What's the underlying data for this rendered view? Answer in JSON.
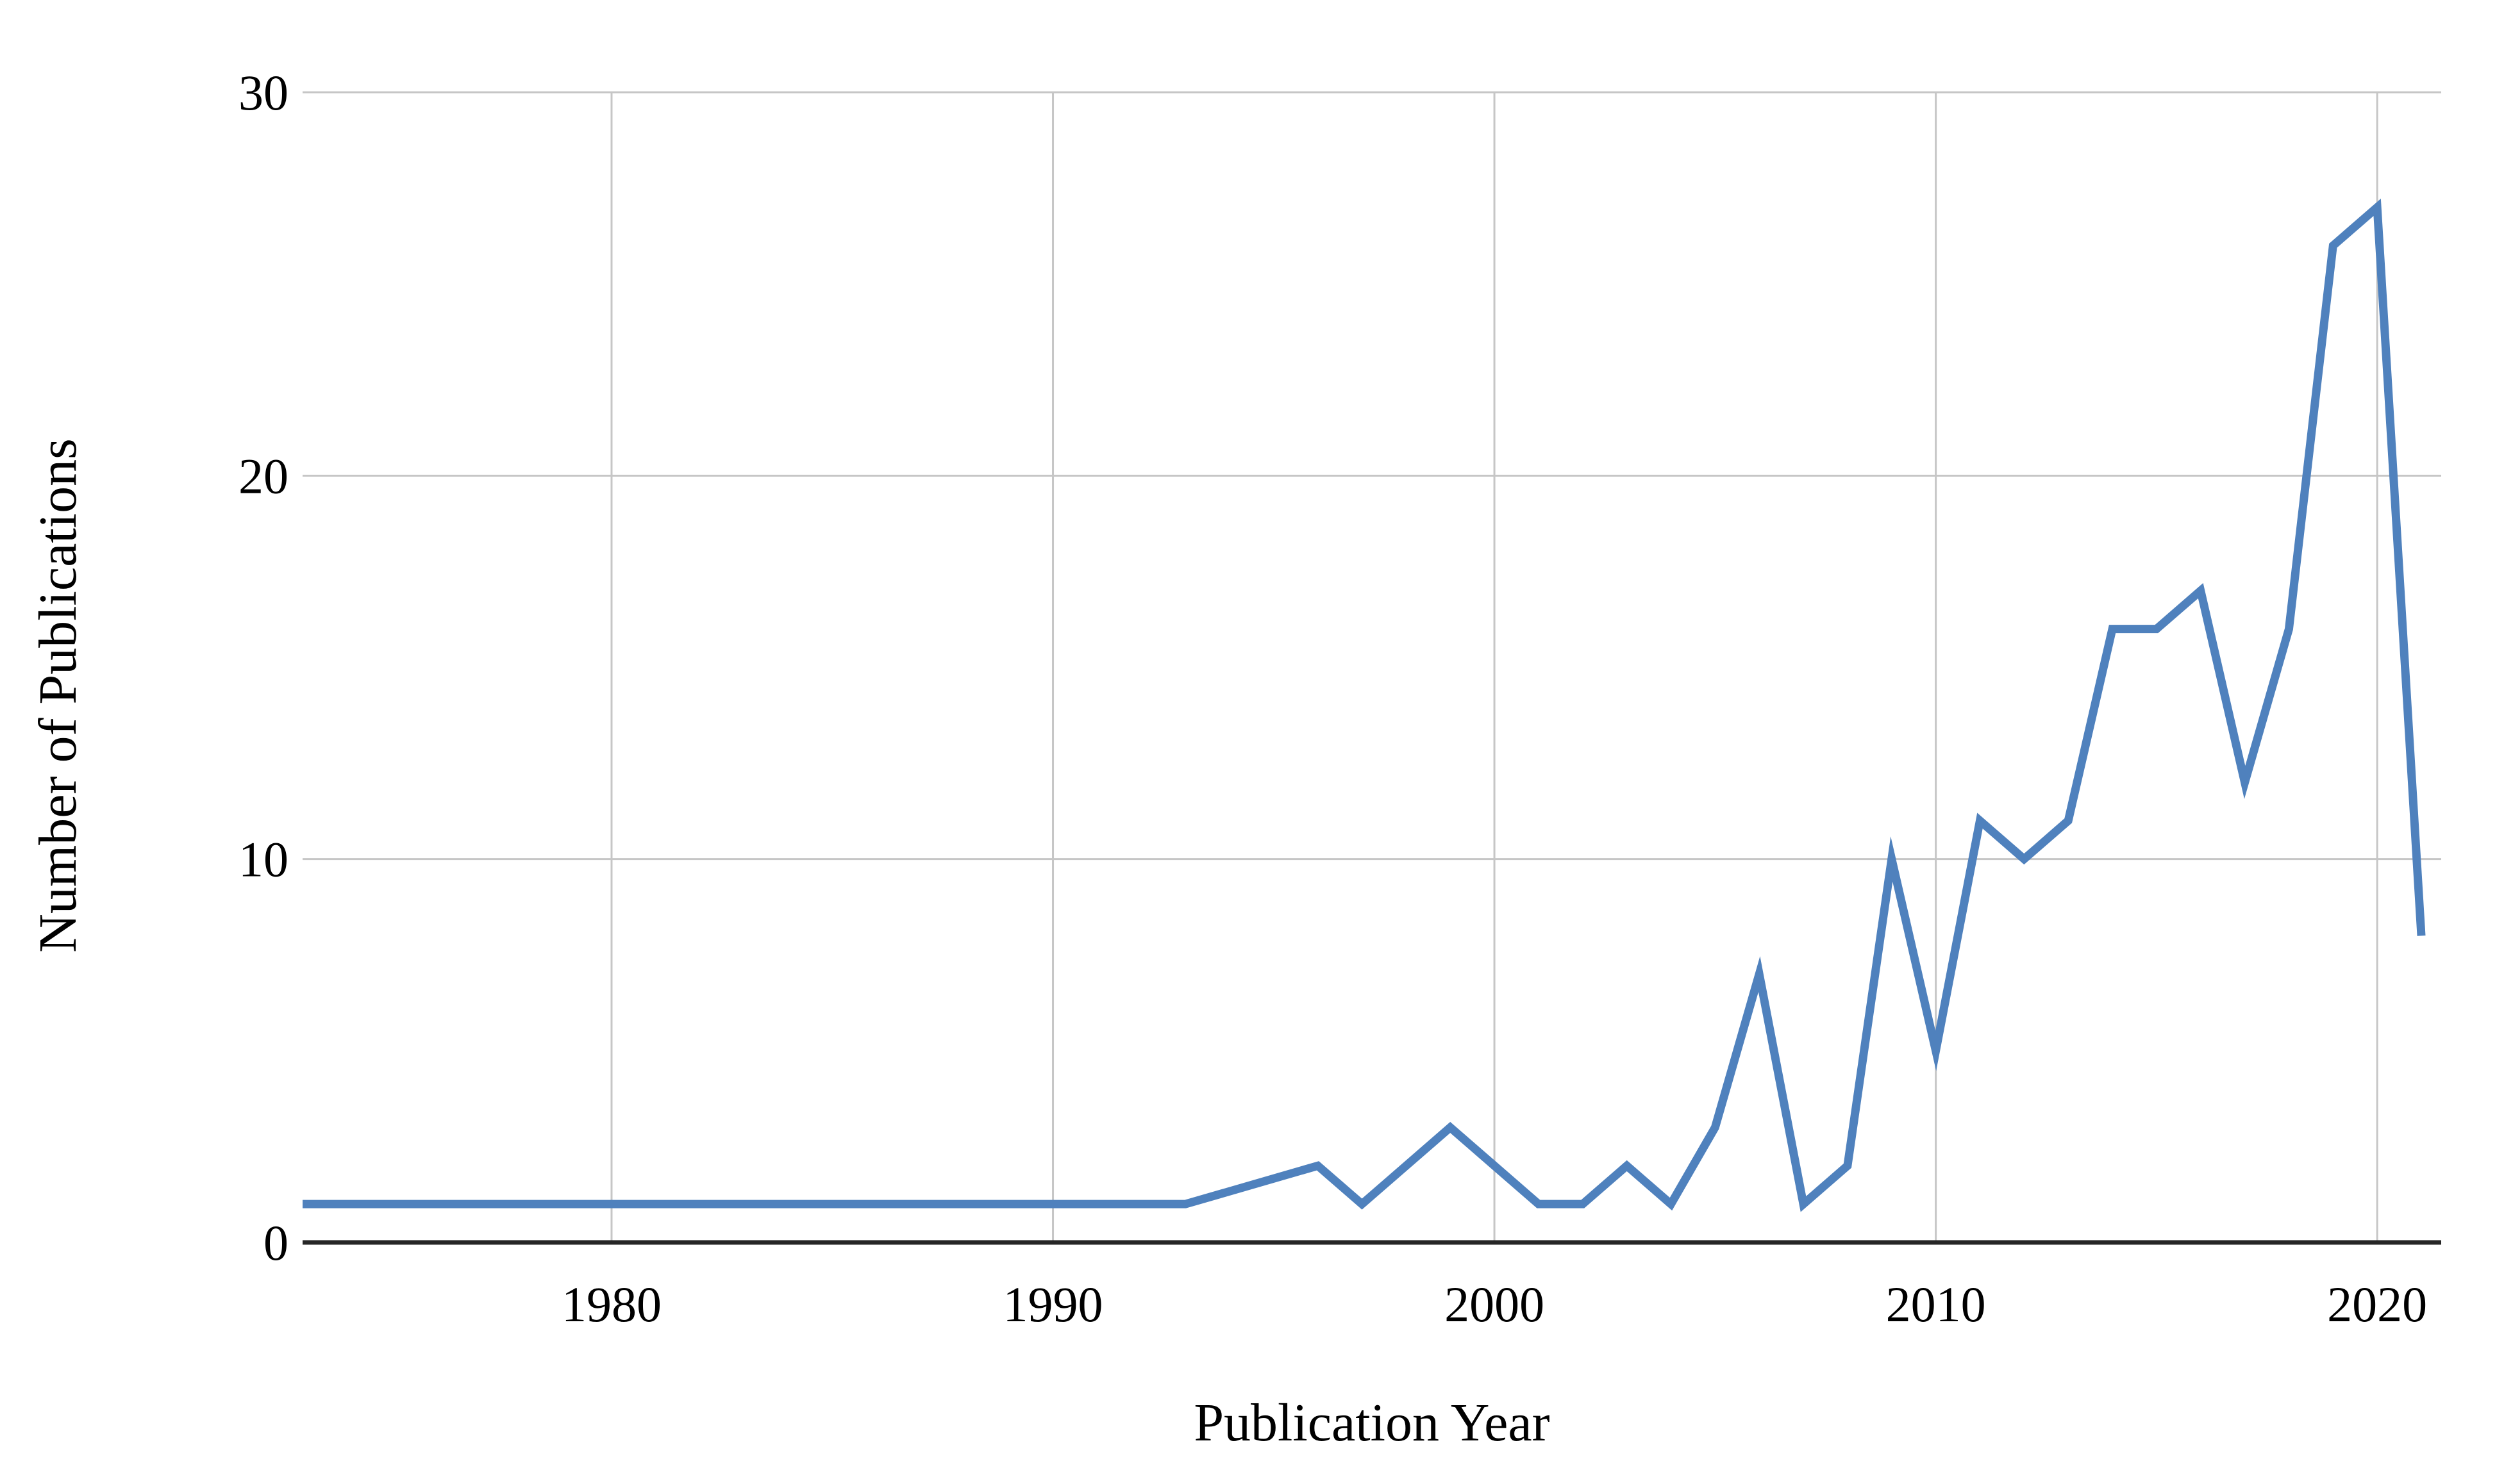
{
  "page": {
    "background_color": "#FFFFFF"
  },
  "chart_data": {
    "type": "line",
    "title": "",
    "xlabel": "Publication Year",
    "ylabel": "Number of Publications",
    "x": [
      1973,
      1993,
      1996,
      1997,
      1999,
      2000,
      2001,
      2002,
      2003,
      2004,
      2005,
      2006,
      2007,
      2008,
      2009,
      2010,
      2011,
      2012,
      2013,
      2014,
      2015,
      2016,
      2017,
      2018,
      2019,
      2020,
      2021
    ],
    "values": [
      1,
      1,
      2,
      1,
      3,
      2,
      1,
      1,
      2,
      1,
      3,
      7,
      1,
      2,
      10,
      5,
      11,
      10,
      11,
      16,
      16,
      17,
      12,
      16,
      26,
      27,
      8
    ],
    "series_name": "Number of Publications",
    "x_ticks": [
      1980,
      1990,
      2000,
      2010,
      2020
    ],
    "y_ticks": [
      0,
      10,
      20,
      30
    ],
    "xlim": [
      1973,
      2021.45
    ],
    "ylim": [
      0,
      30
    ],
    "grid": true,
    "legend_position": "none",
    "series_color": "#4F81BD",
    "gridline_color": "#C6C6C6",
    "axis_color": "#262626",
    "text_color": "#000000"
  }
}
